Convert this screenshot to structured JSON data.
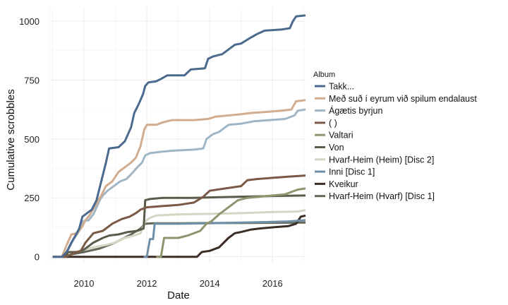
{
  "chart_data": {
    "type": "line",
    "xlabel": "Date",
    "ylabel": "Cumulative scrobbles",
    "xlim": [
      2008.9,
      2017.05
    ],
    "ylim": [
      -25,
      1060
    ],
    "x_ticks": [
      2010,
      2012,
      2014,
      2016
    ],
    "x_tick_labels": [
      "2010",
      "2012",
      "2014",
      "2016"
    ],
    "y_ticks": [
      0,
      250,
      500,
      750,
      1000
    ],
    "y_tick_labels": [
      "0",
      "250",
      "500",
      "750",
      "1000"
    ],
    "grid": true,
    "legend": {
      "title": "Album",
      "position": "right"
    },
    "series": [
      {
        "name": "Takk...",
        "color": "#4b6a8d",
        "points": [
          [
            2009.0,
            0
          ],
          [
            2009.3,
            0
          ],
          [
            2009.45,
            20
          ],
          [
            2009.6,
            60
          ],
          [
            2009.75,
            95
          ],
          [
            2009.85,
            120
          ],
          [
            2009.95,
            170
          ],
          [
            2010.1,
            185
          ],
          [
            2010.25,
            200
          ],
          [
            2010.4,
            240
          ],
          [
            2010.55,
            320
          ],
          [
            2010.7,
            400
          ],
          [
            2010.8,
            460
          ],
          [
            2011.1,
            465
          ],
          [
            2011.3,
            490
          ],
          [
            2011.5,
            550
          ],
          [
            2011.6,
            610
          ],
          [
            2011.75,
            650
          ],
          [
            2011.88,
            690
          ],
          [
            2011.95,
            725
          ],
          [
            2012.05,
            740
          ],
          [
            2012.3,
            745
          ],
          [
            2012.45,
            755
          ],
          [
            2012.65,
            770
          ],
          [
            2013.0,
            770
          ],
          [
            2013.2,
            770
          ],
          [
            2013.4,
            795
          ],
          [
            2013.85,
            800
          ],
          [
            2013.95,
            840
          ],
          [
            2014.1,
            850
          ],
          [
            2014.4,
            860
          ],
          [
            2014.6,
            880
          ],
          [
            2014.8,
            900
          ],
          [
            2015.0,
            905
          ],
          [
            2015.3,
            930
          ],
          [
            2015.5,
            945
          ],
          [
            2015.75,
            960
          ],
          [
            2016.3,
            965
          ],
          [
            2016.55,
            970
          ],
          [
            2016.65,
            1000
          ],
          [
            2016.75,
            1020
          ],
          [
            2017.05,
            1025
          ]
        ]
      },
      {
        "name": "Með suð í eyrum við spilum endalaust",
        "color": "#d1ac8e",
        "points": [
          [
            2009.0,
            0
          ],
          [
            2009.3,
            0
          ],
          [
            2009.45,
            50
          ],
          [
            2009.6,
            95
          ],
          [
            2009.8,
            100
          ],
          [
            2009.95,
            130
          ],
          [
            2010.05,
            155
          ],
          [
            2010.2,
            180
          ],
          [
            2010.35,
            215
          ],
          [
            2010.55,
            260
          ],
          [
            2010.7,
            300
          ],
          [
            2010.9,
            320
          ],
          [
            2011.1,
            360
          ],
          [
            2011.3,
            380
          ],
          [
            2011.5,
            400
          ],
          [
            2011.65,
            420
          ],
          [
            2011.8,
            470
          ],
          [
            2011.92,
            540
          ],
          [
            2012.0,
            560
          ],
          [
            2012.3,
            560
          ],
          [
            2012.5,
            570
          ],
          [
            2012.8,
            580
          ],
          [
            2013.5,
            580
          ],
          [
            2013.95,
            585
          ],
          [
            2014.2,
            595
          ],
          [
            2014.6,
            600
          ],
          [
            2015.0,
            605
          ],
          [
            2015.3,
            610
          ],
          [
            2015.8,
            615
          ],
          [
            2016.3,
            620
          ],
          [
            2016.6,
            625
          ],
          [
            2016.75,
            660
          ],
          [
            2017.05,
            665
          ]
        ]
      },
      {
        "name": "Ágætis byrjun",
        "color": "#9fb6c6",
        "points": [
          [
            2009.0,
            0
          ],
          [
            2009.3,
            0
          ],
          [
            2009.5,
            30
          ],
          [
            2009.65,
            70
          ],
          [
            2009.8,
            100
          ],
          [
            2009.95,
            150
          ],
          [
            2010.15,
            155
          ],
          [
            2010.3,
            180
          ],
          [
            2010.5,
            240
          ],
          [
            2010.6,
            260
          ],
          [
            2010.75,
            280
          ],
          [
            2010.95,
            300
          ],
          [
            2011.15,
            320
          ],
          [
            2011.35,
            330
          ],
          [
            2011.5,
            350
          ],
          [
            2011.7,
            380
          ],
          [
            2011.85,
            400
          ],
          [
            2011.95,
            430
          ],
          [
            2012.1,
            440
          ],
          [
            2012.4,
            445
          ],
          [
            2012.8,
            450
          ],
          [
            2013.5,
            455
          ],
          [
            2013.8,
            460
          ],
          [
            2013.9,
            500
          ],
          [
            2014.1,
            520
          ],
          [
            2014.3,
            530
          ],
          [
            2014.6,
            560
          ],
          [
            2015.0,
            565
          ],
          [
            2015.4,
            575
          ],
          [
            2015.9,
            580
          ],
          [
            2016.4,
            585
          ],
          [
            2016.7,
            600
          ],
          [
            2016.8,
            620
          ],
          [
            2017.05,
            625
          ]
        ]
      },
      {
        "name": "( )",
        "color": "#7a5a46",
        "points": [
          [
            2009.0,
            0
          ],
          [
            2009.4,
            0
          ],
          [
            2009.6,
            10
          ],
          [
            2009.9,
            25
          ],
          [
            2010.05,
            60
          ],
          [
            2010.3,
            100
          ],
          [
            2010.6,
            110
          ],
          [
            2010.9,
            140
          ],
          [
            2011.2,
            160
          ],
          [
            2011.45,
            170
          ],
          [
            2011.65,
            185
          ],
          [
            2011.8,
            200
          ],
          [
            2012.0,
            210
          ],
          [
            2012.5,
            215
          ],
          [
            2013.0,
            220
          ],
          [
            2013.5,
            230
          ],
          [
            2013.8,
            255
          ],
          [
            2014.0,
            280
          ],
          [
            2014.5,
            290
          ],
          [
            2015.0,
            300
          ],
          [
            2015.2,
            325
          ],
          [
            2015.5,
            330
          ],
          [
            2016.0,
            335
          ],
          [
            2016.5,
            340
          ],
          [
            2017.05,
            345
          ]
        ]
      },
      {
        "name": "Valtari",
        "color": "#8d956f",
        "points": [
          [
            2012.3,
            0
          ],
          [
            2012.45,
            0
          ],
          [
            2012.55,
            80
          ],
          [
            2013.0,
            80
          ],
          [
            2013.3,
            90
          ],
          [
            2013.7,
            110
          ],
          [
            2013.9,
            140
          ],
          [
            2014.05,
            150
          ],
          [
            2014.3,
            180
          ],
          [
            2014.5,
            200
          ],
          [
            2014.7,
            220
          ],
          [
            2014.9,
            240
          ],
          [
            2015.2,
            250
          ],
          [
            2015.6,
            255
          ],
          [
            2016.0,
            260
          ],
          [
            2016.4,
            265
          ],
          [
            2016.8,
            285
          ],
          [
            2017.05,
            290
          ]
        ]
      },
      {
        "name": "Von",
        "color": "#5b5b4b",
        "points": [
          [
            2009.0,
            0
          ],
          [
            2009.4,
            0
          ],
          [
            2009.5,
            20
          ],
          [
            2009.8,
            20
          ],
          [
            2010.0,
            30
          ],
          [
            2010.3,
            60
          ],
          [
            2010.6,
            80
          ],
          [
            2010.8,
            90
          ],
          [
            2011.1,
            95
          ],
          [
            2011.4,
            105
          ],
          [
            2011.7,
            110
          ],
          [
            2011.9,
            120
          ],
          [
            2011.95,
            240
          ],
          [
            2012.1,
            245
          ],
          [
            2012.5,
            250
          ],
          [
            2013.0,
            250
          ],
          [
            2013.5,
            250
          ],
          [
            2014.0,
            252
          ],
          [
            2015.0,
            255
          ],
          [
            2016.0,
            258
          ],
          [
            2017.05,
            260
          ]
        ]
      },
      {
        "name": "Hvarf-Heim (Heim) [Disc 2]",
        "color": "#d6d4c2",
        "points": [
          [
            2009.0,
            0
          ],
          [
            2009.4,
            0
          ],
          [
            2009.7,
            20
          ],
          [
            2010.0,
            30
          ],
          [
            2010.3,
            40
          ],
          [
            2010.7,
            50
          ],
          [
            2011.0,
            60
          ],
          [
            2011.3,
            80
          ],
          [
            2011.6,
            90
          ],
          [
            2011.8,
            100
          ],
          [
            2011.95,
            150
          ],
          [
            2012.1,
            165
          ],
          [
            2012.3,
            175
          ],
          [
            2013.0,
            180
          ],
          [
            2014.0,
            182
          ],
          [
            2015.0,
            185
          ],
          [
            2016.0,
            190
          ],
          [
            2016.8,
            192
          ],
          [
            2017.05,
            198
          ]
        ]
      },
      {
        "name": "Inni [Disc 1]",
        "color": "#6f8ea6",
        "points": [
          [
            2011.9,
            0
          ],
          [
            2012.0,
            0
          ],
          [
            2012.1,
            75
          ],
          [
            2012.2,
            75
          ],
          [
            2012.25,
            140
          ],
          [
            2012.6,
            140
          ],
          [
            2013.0,
            140
          ],
          [
            2014.0,
            142
          ],
          [
            2015.0,
            145
          ],
          [
            2016.0,
            148
          ],
          [
            2016.5,
            150
          ],
          [
            2017.05,
            155
          ]
        ]
      },
      {
        "name": "Kveikur",
        "color": "#3b2c26",
        "points": [
          [
            2009.0,
            0
          ],
          [
            2013.6,
            0
          ],
          [
            2013.75,
            20
          ],
          [
            2014.0,
            25
          ],
          [
            2014.3,
            40
          ],
          [
            2014.6,
            80
          ],
          [
            2014.8,
            100
          ],
          [
            2015.0,
            105
          ],
          [
            2015.3,
            115
          ],
          [
            2015.6,
            120
          ],
          [
            2016.0,
            125
          ],
          [
            2016.5,
            130
          ],
          [
            2016.75,
            140
          ],
          [
            2016.9,
            170
          ],
          [
            2017.05,
            175
          ]
        ]
      },
      {
        "name": "Hvarf-Heim (Hvarf) [Disc 1]",
        "color": "#646657",
        "points": [
          [
            2009.0,
            0
          ],
          [
            2009.4,
            0
          ],
          [
            2009.6,
            10
          ],
          [
            2010.0,
            20
          ],
          [
            2010.5,
            35
          ],
          [
            2011.0,
            60
          ],
          [
            2011.5,
            95
          ],
          [
            2011.8,
            120
          ],
          [
            2011.95,
            140
          ],
          [
            2012.2,
            142
          ],
          [
            2013.0,
            142
          ],
          [
            2014.0,
            143
          ],
          [
            2015.0,
            143
          ],
          [
            2016.0,
            144
          ],
          [
            2017.05,
            145
          ]
        ]
      }
    ]
  }
}
